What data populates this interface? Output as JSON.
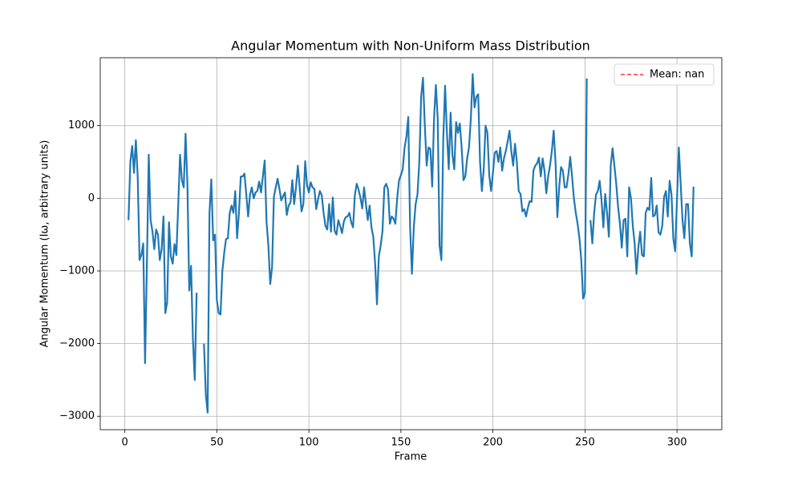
{
  "chart_data": {
    "type": "line",
    "title": "Angular Momentum with Non-Uniform Mass Distribution",
    "xlabel": "Frame",
    "ylabel": "Angular Momentum (Iω, arbitrary units)",
    "xlim": [
      -13.35,
      324.35
    ],
    "ylim": [
      -3185,
      1935
    ],
    "xticks": [
      0,
      50,
      100,
      150,
      200,
      250,
      300
    ],
    "yticks": [
      {
        "value": -3000,
        "label": "−3000"
      },
      {
        "value": -2000,
        "label": "−2000"
      },
      {
        "value": -1000,
        "label": "−1000"
      },
      0,
      1000
    ],
    "grid": true,
    "legend": "upper right",
    "mean_line": {
      "label": "Mean: nan",
      "color": "#ff0000"
    },
    "x": [
      2,
      3,
      4,
      5,
      6,
      7,
      8,
      9,
      10,
      11,
      12,
      13,
      14,
      15,
      16,
      17,
      18,
      19,
      20,
      21,
      22,
      23,
      24,
      25,
      26,
      27,
      28,
      29,
      30,
      31,
      32,
      33,
      34,
      35,
      36,
      37,
      38,
      39,
      40,
      41,
      42,
      43,
      44,
      45,
      46,
      47,
      48,
      49,
      50,
      51,
      52,
      53,
      54,
      55,
      56,
      57,
      58,
      59,
      60,
      61,
      62,
      63,
      64,
      65,
      66,
      67,
      68,
      69,
      70,
      71,
      72,
      73,
      74,
      75,
      76,
      77,
      78,
      79,
      80,
      81,
      82,
      83,
      84,
      85,
      86,
      87,
      88,
      89,
      90,
      91,
      92,
      93,
      94,
      95,
      96,
      97,
      98,
      99,
      100,
      101,
      102,
      103,
      104,
      105,
      106,
      107,
      108,
      109,
      110,
      111,
      112,
      113,
      114,
      115,
      116,
      117,
      118,
      119,
      120,
      121,
      122,
      123,
      124,
      125,
      126,
      127,
      128,
      129,
      130,
      131,
      132,
      133,
      134,
      135,
      136,
      137,
      138,
      139,
      140,
      141,
      142,
      143,
      144,
      145,
      146,
      147,
      148,
      149,
      150,
      151,
      152,
      153,
      154,
      155,
      156,
      157,
      158,
      159,
      160,
      161,
      162,
      163,
      164,
      165,
      166,
      167,
      168,
      169,
      170,
      171,
      172,
      173,
      174,
      175,
      176,
      177,
      178,
      179,
      180,
      181,
      182,
      183,
      184,
      185,
      186,
      187,
      188,
      189,
      190,
      191,
      192,
      193,
      194,
      195,
      196,
      197,
      198,
      199,
      200,
      201,
      202,
      203,
      204,
      205,
      206,
      207,
      208,
      209,
      210,
      211,
      212,
      213,
      214,
      215,
      216,
      217,
      218,
      219,
      220,
      221,
      222,
      223,
      224,
      225,
      226,
      227,
      228,
      229,
      230,
      231,
      232,
      233,
      234,
      235,
      236,
      237,
      238,
      239,
      240,
      241,
      242,
      243,
      244,
      245,
      246,
      247,
      248,
      249,
      250,
      251,
      252,
      253,
      254,
      255,
      256,
      257,
      258,
      259,
      260,
      261,
      262,
      263,
      264,
      265,
      266,
      267,
      268,
      269,
      270,
      271,
      272,
      273,
      274,
      275,
      276,
      277,
      278,
      279,
      280,
      281,
      282,
      283,
      284,
      285,
      286,
      287,
      288,
      289,
      290,
      291,
      292,
      293,
      294,
      295,
      296,
      297,
      298,
      299,
      300,
      301,
      302,
      303,
      304,
      305,
      306,
      307,
      308,
      309
    ],
    "series": [
      {
        "color": "#1f77b4",
        "values": [
          -300,
          500,
          720,
          350,
          800,
          300,
          -850,
          -780,
          -620,
          -2270,
          -900,
          600,
          -300,
          -450,
          -700,
          -430,
          -500,
          -850,
          -700,
          -250,
          -1580,
          -1430,
          -330,
          -800,
          -900,
          -630,
          -780,
          -100,
          600,
          250,
          150,
          890,
          200,
          -1270,
          -930,
          -1950,
          -2500,
          -1300,
          null,
          null,
          null,
          -2000,
          -2700,
          -2950,
          -200,
          260,
          -580,
          -500,
          -1400,
          -1580,
          -1600,
          -1000,
          -750,
          -560,
          -550,
          -200,
          -100,
          -200,
          100,
          -550,
          -200,
          300,
          300,
          340,
          50,
          -250,
          50,
          150,
          0,
          80,
          100,
          230,
          80,
          300,
          520,
          -330,
          -650,
          -1180,
          -950,
          20,
          150,
          270,
          130,
          -30,
          30,
          80,
          -230,
          -100,
          -60,
          250,
          -80,
          150,
          450,
          150,
          -180,
          -80,
          510,
          180,
          80,
          220,
          150,
          130,
          -150,
          -10,
          100,
          40,
          -200,
          -380,
          -430,
          -80,
          -460,
          10,
          -450,
          -500,
          -300,
          -380,
          -480,
          -320,
          -260,
          -250,
          -200,
          -330,
          -400,
          50,
          200,
          120,
          10,
          -140,
          150,
          -80,
          -300,
          -100,
          -400,
          -530,
          -900,
          -1460,
          -800,
          -650,
          -450,
          150,
          200,
          120,
          -350,
          -250,
          -280,
          -350,
          10,
          250,
          320,
          400,
          700,
          850,
          1120,
          -400,
          -1040,
          -400,
          -80,
          50,
          500,
          1400,
          1660,
          1000,
          450,
          700,
          680,
          160,
          1100,
          1560,
          1100,
          -650,
          -850,
          800,
          1550,
          900,
          400,
          1180,
          600,
          400,
          1050,
          900,
          1030,
          700,
          250,
          300,
          550,
          700,
          1100,
          1710,
          1250,
          1400,
          1430,
          500,
          100,
          400,
          1000,
          900,
          320,
          100,
          350,
          630,
          650,
          500,
          700,
          380,
          550,
          650,
          780,
          930,
          650,
          450,
          750,
          500,
          100,
          60,
          -180,
          -150,
          -250,
          -130,
          -40,
          -50,
          380,
          450,
          480,
          560,
          300,
          550,
          380,
          70,
          300,
          450,
          650,
          930,
          500,
          -260,
          150,
          430,
          380,
          150,
          150,
          330,
          570,
          300,
          0,
          -200,
          -350,
          -550,
          -850,
          -1380,
          -1300,
          1650,
          null,
          -300,
          -620,
          -200,
          50,
          100,
          240,
          -30,
          -400,
          60,
          -200,
          -530,
          450,
          690,
          450,
          200,
          -120,
          -350,
          -680,
          -300,
          -280,
          -800,
          150,
          0,
          -380,
          -620,
          -1040,
          -680,
          -460,
          -780,
          -800,
          -200,
          -130,
          -160,
          280,
          -250,
          -230,
          -100,
          -470,
          -500,
          -380,
          20,
          100,
          -250,
          240,
          60,
          -550,
          -730,
          -20,
          700,
          200,
          -300,
          -550,
          -80,
          -80,
          -620,
          -800,
          160
        ]
      }
    ]
  }
}
